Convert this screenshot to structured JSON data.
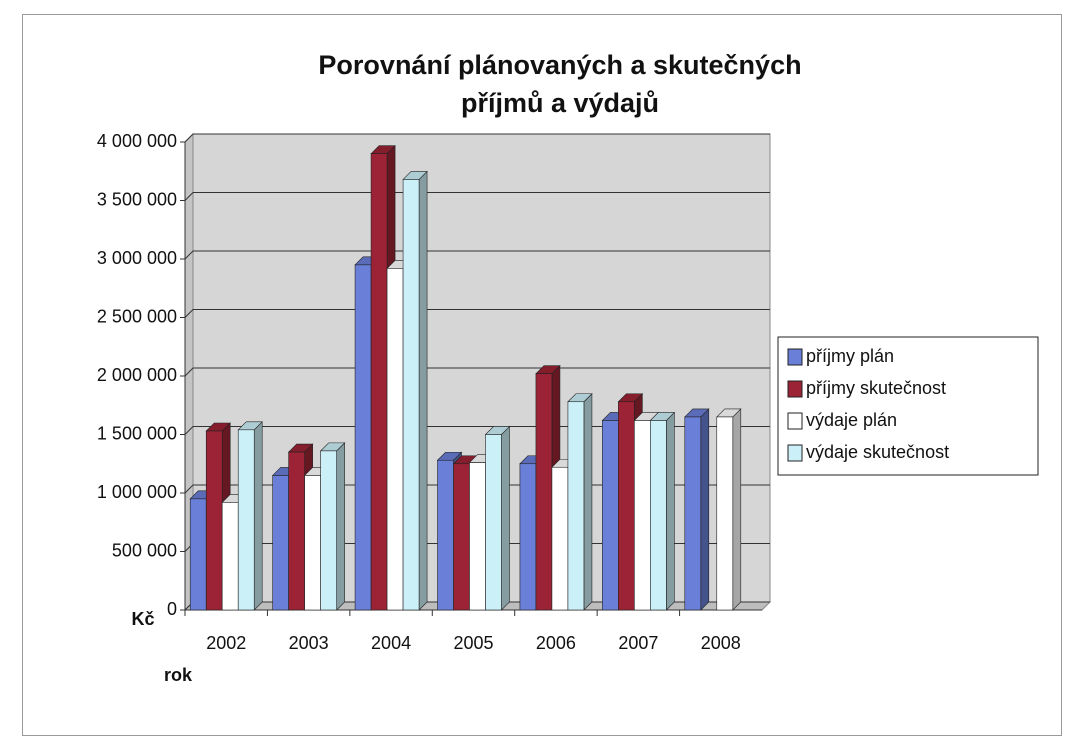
{
  "chart_data": {
    "type": "bar",
    "title": "Porovnání plánovaných a skutečných příjmů a výdajů",
    "y_label": "Kč",
    "x_label": "rok",
    "categories": [
      "2002",
      "2003",
      "2004",
      "2005",
      "2006",
      "2007",
      "2008"
    ],
    "series": [
      {
        "name": "příjmy plán",
        "color": "#6a7fd8",
        "values": [
          950000,
          1150000,
          2950000,
          1280000,
          1250000,
          1620000,
          1650000
        ]
      },
      {
        "name": "příjmy skutečnost",
        "color": "#9b2335",
        "values": [
          1530000,
          1350000,
          3900000,
          1250000,
          2020000,
          1780000,
          null
        ]
      },
      {
        "name": "výdaje plán",
        "color": "#ffffff",
        "values": [
          920000,
          1150000,
          2920000,
          1260000,
          1220000,
          1620000,
          1650000
        ]
      },
      {
        "name": "výdaje skutečnost",
        "color": "#ccf0f8",
        "values": [
          1540000,
          1360000,
          3680000,
          1500000,
          1780000,
          1620000,
          null
        ]
      }
    ],
    "ylim": [
      0,
      4000000
    ],
    "yticks": [
      0,
      {
        "value": 500000,
        "label": "500 000"
      },
      {
        "value": 1000000,
        "label": "1 000 000"
      },
      {
        "value": 1500000,
        "label": "1 500 000"
      },
      {
        "value": 2000000,
        "label": "2 000 000"
      },
      {
        "value": 2500000,
        "label": "2 500 000"
      },
      {
        "value": 3000000,
        "label": "3 000 000"
      },
      {
        "value": 3500000,
        "label": "3 500 000"
      },
      {
        "value": 4000000,
        "label": "4 000 000"
      }
    ],
    "grid": true,
    "legend": "right"
  }
}
